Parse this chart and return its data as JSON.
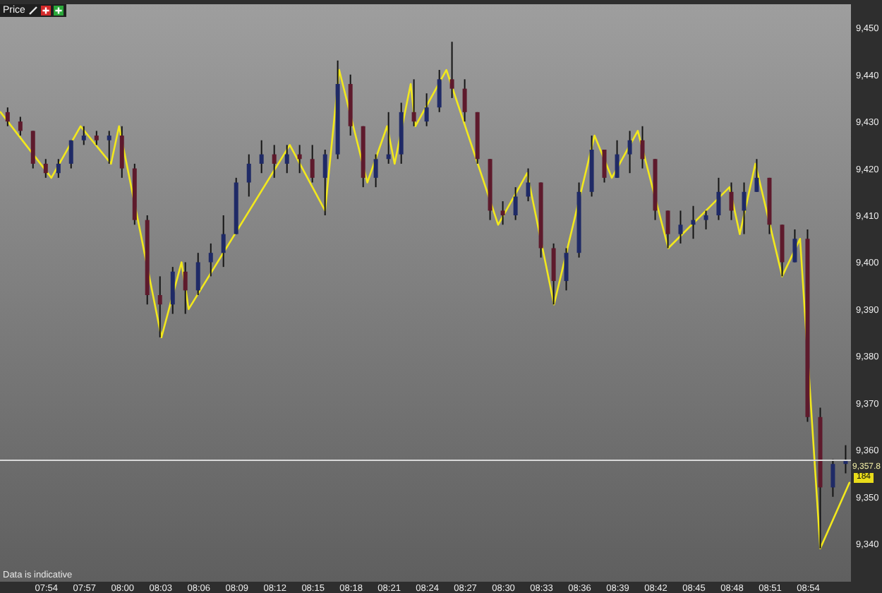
{
  "chart_data": {
    "type": "candlestick",
    "title": "Price",
    "series": [
      {
        "type": "line",
        "color": "#f2e81c",
        "x": [
          7.8407,
          7.9074,
          7.9457,
          7.9857,
          7.9963,
          8.0519,
          8.0783,
          8.0876,
          8.2204,
          8.2667,
          8.2852,
          8.3222,
          8.3481,
          8.358,
          8.3791,
          8.3852,
          8.4259,
          8.4939,
          8.532,
          8.5672,
          8.6204,
          8.6431,
          8.6772,
          8.7172,
          8.7976,
          8.8111,
          8.8315,
          8.8667,
          8.8902,
          8.9167,
          8.955
        ],
        "values": [
          9432,
          9418,
          9429,
          9421,
          9429,
          9384,
          9400,
          9390,
          9425,
          9411,
          9441,
          9417,
          9429,
          9421,
          9438,
          9429,
          9441,
          9408,
          9419,
          9391,
          9427,
          9418,
          9428,
          9403,
          9416,
          9406,
          9421,
          9397,
          9405,
          9339,
          9353
        ]
      },
      {
        "type": "candlestick",
        "color": "#141414",
        "colors": [
          "#5e1a2c",
          "#5e1a2c",
          "#5e1a2c",
          "#5e1a2c",
          "#1f2a66",
          "#1f2a66",
          "#1f2a66",
          "#5e1a2c",
          "#1f2a66",
          "#5e1a2c",
          "#5e1a2c",
          "#5e1a2c",
          "#5e1a2c",
          "#1f2a66",
          "#5e1a2c",
          "#1f2a66",
          "#1f2a66",
          "#1f2a66",
          "#1f2a66",
          "#1f2a66",
          "#1f2a66",
          "#5e1a2c",
          "#1f2a66",
          "#5e1a2c",
          "#5e1a2c",
          "#1f2a66",
          "#1f2a66",
          "#5e1a2c",
          "#5e1a2c",
          "#1f2a66",
          "#1f2a66",
          "#1f2a66",
          "#5e1a2c",
          "#1f2a66",
          "#1f2a66",
          "#5e1a2c",
          "#5e1a2c",
          "#5e1a2c",
          "#5e1a2c",
          "#5e1a2c",
          "#1f2a66",
          "#1f2a66",
          "#5e1a2c",
          "#5e1a2c",
          "#1f2a66",
          "#1f2a66",
          "#1f2a66",
          "#5e1a2c",
          "#1f2a66",
          "#1f2a66",
          "#5e1a2c",
          "#5e1a2c",
          "#5e1a2c",
          "#1f2a66",
          "#1f2a66",
          "#1f2a66",
          "#1f2a66",
          "#5e1a2c",
          "#1f2a66",
          "#1f2a66",
          "#5e1a2c",
          "#5e1a2c",
          "#1f2a66",
          "#5e1a2c",
          "#5e1a2c",
          "#1f2a66",
          "#1f2a66"
        ],
        "x": [
          7.85,
          7.8667,
          7.8833,
          7.9,
          7.9167,
          7.9333,
          7.95,
          7.9667,
          7.9833,
          8.0,
          8.0167,
          8.0333,
          8.05,
          8.0667,
          8.0833,
          8.1,
          8.1167,
          8.1333,
          8.15,
          8.1667,
          8.1833,
          8.2,
          8.2167,
          8.2333,
          8.25,
          8.2667,
          8.2833,
          8.3,
          8.3167,
          8.3333,
          8.35,
          8.3667,
          8.3833,
          8.4,
          8.4167,
          8.4333,
          8.45,
          8.4667,
          8.4833,
          8.5,
          8.5167,
          8.5333,
          8.55,
          8.5667,
          8.5833,
          8.6,
          8.6167,
          8.6333,
          8.65,
          8.6667,
          8.6833,
          8.7,
          8.7167,
          8.7333,
          8.75,
          8.7667,
          8.7833,
          8.8,
          8.8167,
          8.8333,
          8.85,
          8.8667,
          8.8833,
          8.9,
          8.9167,
          8.9333,
          8.95
        ],
        "ohlc": [
          [
            9432,
            9433,
            9429,
            9430
          ],
          [
            9430,
            9431,
            9427,
            9428
          ],
          [
            9428,
            9428,
            9420,
            9421
          ],
          [
            9421,
            9422,
            9418,
            9419
          ],
          [
            9419,
            9422,
            9418,
            9421
          ],
          [
            9421,
            9426,
            9420,
            9426
          ],
          [
            9426,
            9429,
            9425,
            9427
          ],
          [
            9427,
            9428,
            9425,
            9426
          ],
          [
            9426,
            9428,
            9421,
            9427
          ],
          [
            9427,
            9429,
            9418,
            9420
          ],
          [
            9420,
            9421,
            9408,
            9409
          ],
          [
            9409,
            9410,
            9391,
            9393
          ],
          [
            9393,
            9397,
            9384,
            9391
          ],
          [
            9391,
            9399,
            9389,
            9398
          ],
          [
            9398,
            9400,
            9389,
            9394
          ],
          [
            9394,
            9402,
            9393,
            9400
          ],
          [
            9400,
            9404,
            9397,
            9402
          ],
          [
            9402,
            9410,
            9399,
            9406
          ],
          [
            9406,
            9418,
            9406,
            9417
          ],
          [
            9417,
            9423,
            9414,
            9421
          ],
          [
            9421,
            9426,
            9419,
            9423
          ],
          [
            9423,
            9425,
            9418,
            9421
          ],
          [
            9421,
            9425,
            9419,
            9423
          ],
          [
            9423,
            9425,
            9419,
            9422
          ],
          [
            9422,
            9425,
            9417,
            9418
          ],
          [
            9418,
            9424,
            9410,
            9423
          ],
          [
            9423,
            9443,
            9422,
            9438
          ],
          [
            9438,
            9440,
            9427,
            9429
          ],
          [
            9429,
            9429,
            9416,
            9418
          ],
          [
            9418,
            9423,
            9416,
            9422
          ],
          [
            9422,
            9432,
            9421,
            9423
          ],
          [
            9423,
            9434,
            9421,
            9432
          ],
          [
            9432,
            9439,
            9429,
            9430
          ],
          [
            9430,
            9436,
            9429,
            9433
          ],
          [
            9433,
            9441,
            9432,
            9439
          ],
          [
            9439,
            9447,
            9435,
            9437
          ],
          [
            9437,
            9439,
            9430,
            9432
          ],
          [
            9432,
            9432,
            9421,
            9422
          ],
          [
            9422,
            9422,
            9409,
            9411
          ],
          [
            9411,
            9413,
            9408,
            9410
          ],
          [
            9410,
            9416,
            9409,
            9414
          ],
          [
            9414,
            9420,
            9413,
            9417
          ],
          [
            9417,
            9417,
            9401,
            9403
          ],
          [
            9403,
            9404,
            9391,
            9396
          ],
          [
            9396,
            9403,
            9394,
            9402
          ],
          [
            9402,
            9417,
            9401,
            9415
          ],
          [
            9415,
            9427,
            9414,
            9424
          ],
          [
            9424,
            9424,
            9417,
            9418
          ],
          [
            9418,
            9426,
            9418,
            9423
          ],
          [
            9423,
            9428,
            9419,
            9426
          ],
          [
            9426,
            9429,
            9420,
            9422
          ],
          [
            9422,
            9422,
            9409,
            9411
          ],
          [
            9411,
            9411,
            9403,
            9406
          ],
          [
            9406,
            9411,
            9404,
            9408
          ],
          [
            9408,
            9412,
            9405,
            9409
          ],
          [
            9409,
            9411,
            9407,
            9410
          ],
          [
            9410,
            9418,
            9409,
            9415
          ],
          [
            9415,
            9417,
            9409,
            9411
          ],
          [
            9411,
            9417,
            9406,
            9415
          ],
          [
            9415,
            9422,
            9415,
            9418
          ],
          [
            9418,
            9418,
            9406,
            9408
          ],
          [
            9408,
            9408,
            9397,
            9400
          ],
          [
            9400,
            9407,
            9400,
            9405
          ],
          [
            9405,
            9407,
            9366,
            9367
          ],
          [
            9367,
            9369,
            9339,
            9352
          ],
          [
            9352,
            9358,
            9350,
            9357
          ],
          [
            9357,
            9361,
            9355,
            9357.8
          ]
        ]
      }
    ],
    "xlim": [
      7.84,
      8.957
    ],
    "xticks": [
      {
        "value": 7.9,
        "label": "07:54"
      },
      {
        "value": 7.95,
        "label": "07:57"
      },
      {
        "value": 8.0,
        "label": "08:00"
      },
      {
        "value": 8.05,
        "label": "08:03"
      },
      {
        "value": 8.1,
        "label": "08:06"
      },
      {
        "value": 8.15,
        "label": "08:09"
      },
      {
        "value": 8.2,
        "label": "08:12"
      },
      {
        "value": 8.25,
        "label": "08:15"
      },
      {
        "value": 8.3,
        "label": "08:18"
      },
      {
        "value": 8.35,
        "label": "08:21"
      },
      {
        "value": 8.4,
        "label": "08:24"
      },
      {
        "value": 8.45,
        "label": "08:27"
      },
      {
        "value": 8.5,
        "label": "08:30"
      },
      {
        "value": 8.55,
        "label": "08:33"
      },
      {
        "value": 8.6,
        "label": "08:36"
      },
      {
        "value": 8.65,
        "label": "08:39"
      },
      {
        "value": 8.7,
        "label": "08:42"
      },
      {
        "value": 8.75,
        "label": "08:45"
      },
      {
        "value": 8.8,
        "label": "08:48"
      },
      {
        "value": 8.85,
        "label": "08:51"
      },
      {
        "value": 8.9,
        "label": "08:54"
      }
    ],
    "ylim": [
      9331.9,
      9455.0
    ],
    "yticks": [
      {
        "value": 9340,
        "label": "9,340"
      },
      {
        "value": 9350,
        "label": "9,350"
      },
      {
        "value": 9360,
        "label": "9,360"
      },
      {
        "value": 9370,
        "label": "9,370"
      },
      {
        "value": 9380,
        "label": "9,380"
      },
      {
        "value": 9390,
        "label": "9,390"
      },
      {
        "value": 9400,
        "label": "9,400"
      },
      {
        "value": 9410,
        "label": "9,410"
      },
      {
        "value": 9420,
        "label": "9,420"
      },
      {
        "value": 9430,
        "label": "9,430"
      },
      {
        "value": 9440,
        "label": "9,440"
      },
      {
        "value": 9450,
        "label": "9,450"
      }
    ],
    "grid": false,
    "ref_lines": [
      {
        "axis": "y",
        "value": 9357.8,
        "label": "9,357.8",
        "color": "#d9d9d9"
      }
    ],
    "annotations": [
      "Data is indicative",
      "184"
    ]
  }
}
